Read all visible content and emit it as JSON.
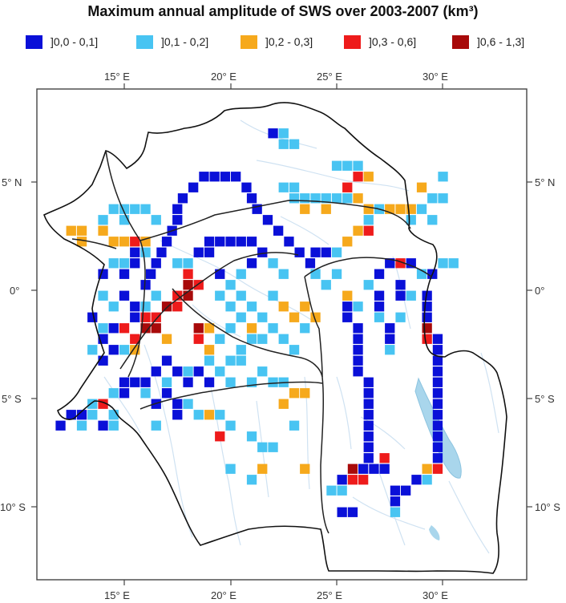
{
  "title": "Maximum annual amplitude of SWS over 2003-2007 (km³)",
  "legend": [
    {
      "label": "]0,0 - 0,1]",
      "color": "#0a10d8"
    },
    {
      "label": "]0,1 - 0,2]",
      "color": "#48c4f2"
    },
    {
      "label": "]0,2 - 0,3]",
      "color": "#f6a91c"
    },
    {
      "label": "]0,3 - 0,6]",
      "color": "#ee1b1b"
    },
    {
      "label": "]0,6 - 1,3]",
      "color": "#a80a0a"
    }
  ],
  "axes": {
    "lon_ticks": [
      "15° E",
      "20° E",
      "25° E",
      "30° E"
    ],
    "lat_ticks": [
      "5° N",
      "0°",
      "5° S",
      "10° S"
    ]
  },
  "chart_data": {
    "type": "heatmap",
    "title": "Maximum annual amplitude of SWS over 2003-2007 (km³)",
    "lon_range": [
      11.5,
      34.5
    ],
    "lat_range": [
      -13.8,
      9.5
    ],
    "cell_size_deg": 0.5,
    "classes": [
      "]0,0 - 0,1]",
      "]0,1 - 0,2]",
      "]0,2 - 0,3]",
      "]0,3 - 0,6]",
      "]0,6 - 1,3]"
    ],
    "cells": [
      [
        22.0,
        7.25,
        0
      ],
      [
        22.5,
        6.75,
        1
      ],
      [
        23.0,
        6.75,
        1
      ],
      [
        22.5,
        7.25,
        1
      ],
      [
        18.75,
        5.25,
        0
      ],
      [
        19.25,
        5.25,
        0
      ],
      [
        19.75,
        5.25,
        0
      ],
      [
        20.25,
        5.25,
        0
      ],
      [
        18.25,
        4.75,
        0
      ],
      [
        20.75,
        4.75,
        0
      ],
      [
        17.75,
        4.25,
        0
      ],
      [
        21.0,
        4.25,
        0
      ],
      [
        17.5,
        3.75,
        0
      ],
      [
        17.5,
        3.25,
        0
      ],
      [
        17.25,
        2.75,
        0
      ],
      [
        17.0,
        2.25,
        0
      ],
      [
        16.75,
        1.75,
        0
      ],
      [
        16.5,
        1.25,
        0
      ],
      [
        16.25,
        0.75,
        0
      ],
      [
        16.0,
        0.25,
        0
      ],
      [
        21.25,
        3.75,
        0
      ],
      [
        21.75,
        3.25,
        0
      ],
      [
        22.25,
        2.75,
        0
      ],
      [
        22.75,
        2.25,
        0
      ],
      [
        23.25,
        1.75,
        0
      ],
      [
        23.75,
        1.25,
        0
      ],
      [
        23.0,
        4.25,
        1
      ],
      [
        23.5,
        4.25,
        1
      ],
      [
        24.0,
        4.25,
        1
      ],
      [
        24.5,
        4.25,
        1
      ],
      [
        25.0,
        4.25,
        1
      ],
      [
        25.5,
        4.25,
        1
      ],
      [
        22.5,
        4.75,
        1
      ],
      [
        23.0,
        4.75,
        1
      ],
      [
        23.5,
        3.75,
        2
      ],
      [
        24.5,
        3.75,
        2
      ],
      [
        25.5,
        4.75,
        3
      ],
      [
        26.0,
        4.25,
        2
      ],
      [
        26.5,
        3.75,
        2
      ],
      [
        27.0,
        3.75,
        1
      ],
      [
        27.5,
        3.75,
        2
      ],
      [
        28.0,
        3.75,
        2
      ],
      [
        28.5,
        3.75,
        2
      ],
      [
        29.0,
        3.75,
        1
      ],
      [
        29.5,
        4.25,
        1
      ],
      [
        30.0,
        4.25,
        1
      ],
      [
        29.0,
        4.75,
        2
      ],
      [
        28.5,
        3.25,
        1
      ],
      [
        26.5,
        3.25,
        1
      ],
      [
        25.0,
        5.75,
        1
      ],
      [
        25.5,
        5.75,
        1
      ],
      [
        26.0,
        5.25,
        3
      ],
      [
        26.5,
        5.25,
        2
      ],
      [
        26.0,
        5.75,
        1
      ],
      [
        30.0,
        5.25,
        1
      ],
      [
        29.5,
        3.25,
        1
      ],
      [
        14.5,
        3.75,
        1
      ],
      [
        15.0,
        3.75,
        1
      ],
      [
        15.5,
        3.75,
        1
      ],
      [
        16.0,
        3.75,
        1
      ],
      [
        14.0,
        3.25,
        1
      ],
      [
        15.0,
        3.25,
        1
      ],
      [
        16.5,
        3.25,
        1
      ],
      [
        12.5,
        2.75,
        2
      ],
      [
        13.0,
        2.75,
        2
      ],
      [
        13.0,
        2.25,
        2
      ],
      [
        14.5,
        2.25,
        2
      ],
      [
        15.0,
        2.25,
        2
      ],
      [
        15.5,
        2.25,
        3
      ],
      [
        16.0,
        2.25,
        2
      ],
      [
        14.0,
        2.75,
        2
      ],
      [
        15.5,
        1.75,
        0
      ],
      [
        16.0,
        1.75,
        1
      ],
      [
        15.0,
        1.25,
        1
      ],
      [
        15.5,
        1.25,
        0
      ],
      [
        17.5,
        1.25,
        1
      ],
      [
        18.0,
        1.25,
        1
      ],
      [
        18.5,
        1.75,
        0
      ],
      [
        19.0,
        1.75,
        0
      ],
      [
        18.0,
        0.75,
        3
      ],
      [
        18.5,
        0.25,
        3
      ],
      [
        18.0,
        0.25,
        4
      ],
      [
        17.5,
        -0.25,
        3
      ],
      [
        17.0,
        -0.75,
        4
      ],
      [
        16.5,
        -1.25,
        3
      ],
      [
        16.0,
        -1.75,
        4
      ],
      [
        15.5,
        -2.25,
        3
      ],
      [
        17.5,
        -0.75,
        3
      ],
      [
        16.0,
        -1.25,
        3
      ],
      [
        18.0,
        -0.25,
        4
      ],
      [
        16.5,
        -1.75,
        4
      ],
      [
        15.0,
        -1.75,
        3
      ],
      [
        17.0,
        -2.25,
        2
      ],
      [
        15.5,
        -2.75,
        2
      ],
      [
        18.5,
        -1.75,
        4
      ],
      [
        18.5,
        -2.25,
        3
      ],
      [
        19.0,
        -2.75,
        2
      ],
      [
        19.0,
        -1.75,
        2
      ],
      [
        15.5,
        -0.75,
        0
      ],
      [
        15.0,
        -0.25,
        0
      ],
      [
        14.5,
        -0.75,
        1
      ],
      [
        14.0,
        -0.25,
        1
      ],
      [
        15.5,
        -1.25,
        0
      ],
      [
        14.5,
        -1.75,
        0
      ],
      [
        14.0,
        -2.25,
        0
      ],
      [
        14.5,
        -2.75,
        0
      ],
      [
        14.0,
        -3.25,
        0
      ],
      [
        13.5,
        -2.75,
        1
      ],
      [
        16.5,
        -0.25,
        1
      ],
      [
        16.0,
        -0.75,
        1
      ],
      [
        14.0,
        0.75,
        0
      ],
      [
        14.5,
        1.25,
        1
      ],
      [
        15.0,
        0.75,
        0
      ],
      [
        13.5,
        -1.25,
        0
      ],
      [
        14.0,
        -1.75,
        1
      ],
      [
        15.0,
        -2.75,
        1
      ],
      [
        19.5,
        0.75,
        0
      ],
      [
        20.0,
        0.25,
        1
      ],
      [
        20.5,
        0.75,
        1
      ],
      [
        21.0,
        1.25,
        0
      ],
      [
        21.5,
        1.75,
        0
      ],
      [
        22.0,
        1.25,
        1
      ],
      [
        22.5,
        0.75,
        1
      ],
      [
        20.5,
        -0.25,
        1
      ],
      [
        21.0,
        -0.75,
        1
      ],
      [
        21.5,
        -1.25,
        1
      ],
      [
        22.0,
        -1.75,
        1
      ],
      [
        22.5,
        -2.25,
        1
      ],
      [
        23.0,
        -2.75,
        1
      ],
      [
        19.5,
        -0.25,
        1
      ],
      [
        20.0,
        -0.75,
        1
      ],
      [
        20.5,
        -1.25,
        1
      ],
      [
        21.0,
        -1.75,
        2
      ],
      [
        21.5,
        -2.25,
        1
      ],
      [
        22.0,
        -0.25,
        1
      ],
      [
        22.5,
        -0.75,
        2
      ],
      [
        23.0,
        -1.25,
        2
      ],
      [
        23.5,
        -0.75,
        2
      ],
      [
        24.0,
        -1.25,
        2
      ],
      [
        23.5,
        -1.75,
        1
      ],
      [
        19.0,
        2.25,
        0
      ],
      [
        19.5,
        2.25,
        0
      ],
      [
        20.0,
        2.25,
        0
      ],
      [
        20.5,
        2.25,
        0
      ],
      [
        21.0,
        2.25,
        0
      ],
      [
        24.0,
        1.75,
        0
      ],
      [
        24.5,
        1.75,
        0
      ],
      [
        25.0,
        1.75,
        1
      ],
      [
        25.5,
        2.25,
        2
      ],
      [
        26.0,
        2.75,
        2
      ],
      [
        26.5,
        2.75,
        3
      ],
      [
        24.0,
        0.75,
        1
      ],
      [
        24.5,
        0.25,
        1
      ],
      [
        25.0,
        0.75,
        1
      ],
      [
        25.5,
        -0.25,
        2
      ],
      [
        26.0,
        -0.75,
        1
      ],
      [
        26.5,
        0.25,
        1
      ],
      [
        27.0,
        0.75,
        0
      ],
      [
        27.5,
        1.25,
        0
      ],
      [
        28.0,
        1.25,
        3
      ],
      [
        28.5,
        1.25,
        0
      ],
      [
        29.0,
        0.75,
        1
      ],
      [
        29.5,
        0.75,
        0
      ],
      [
        30.0,
        1.25,
        1
      ],
      [
        30.5,
        1.25,
        1
      ],
      [
        25.5,
        -0.75,
        0
      ],
      [
        25.5,
        -1.25,
        0
      ],
      [
        26.0,
        -1.75,
        0
      ],
      [
        26.0,
        -2.25,
        0
      ],
      [
        26.0,
        -2.75,
        0
      ],
      [
        26.0,
        -3.25,
        0
      ],
      [
        26.0,
        -3.75,
        0
      ],
      [
        26.5,
        -4.25,
        0
      ],
      [
        26.5,
        -4.75,
        0
      ],
      [
        26.5,
        -5.25,
        0
      ],
      [
        26.5,
        -5.75,
        0
      ],
      [
        26.5,
        -6.25,
        0
      ],
      [
        26.5,
        -6.75,
        0
      ],
      [
        26.5,
        -7.25,
        0
      ],
      [
        26.5,
        -7.75,
        0
      ],
      [
        27.0,
        -0.25,
        0
      ],
      [
        27.0,
        -0.75,
        0
      ],
      [
        27.0,
        -1.25,
        1
      ],
      [
        27.5,
        -1.75,
        0
      ],
      [
        27.5,
        -2.25,
        0
      ],
      [
        27.5,
        -2.75,
        1
      ],
      [
        28.0,
        0.25,
        0
      ],
      [
        28.0,
        -0.25,
        0
      ],
      [
        28.5,
        -0.25,
        1
      ],
      [
        28.0,
        -1.25,
        1
      ],
      [
        29.25,
        -0.25,
        0
      ],
      [
        29.25,
        -0.75,
        0
      ],
      [
        29.25,
        -1.25,
        0
      ],
      [
        29.25,
        -1.75,
        4
      ],
      [
        29.25,
        -2.25,
        3
      ],
      [
        29.75,
        -2.25,
        0
      ],
      [
        29.75,
        -2.75,
        0
      ],
      [
        29.75,
        -3.25,
        0
      ],
      [
        29.75,
        -3.75,
        0
      ],
      [
        29.75,
        -4.25,
        0
      ],
      [
        29.75,
        -4.75,
        0
      ],
      [
        29.75,
        -5.25,
        0
      ],
      [
        29.75,
        -5.75,
        0
      ],
      [
        29.75,
        -6.25,
        0
      ],
      [
        29.75,
        -6.75,
        0
      ],
      [
        29.75,
        -7.25,
        0
      ],
      [
        29.75,
        -7.75,
        0
      ],
      [
        29.75,
        -8.25,
        3
      ],
      [
        29.25,
        -8.25,
        2
      ],
      [
        29.25,
        -8.75,
        1
      ],
      [
        28.75,
        -8.75,
        0
      ],
      [
        28.25,
        -9.25,
        0
      ],
      [
        27.75,
        -9.25,
        0
      ],
      [
        27.75,
        -9.75,
        0
      ],
      [
        25.75,
        -8.25,
        4
      ],
      [
        25.75,
        -8.75,
        3
      ],
      [
        25.25,
        -8.75,
        0
      ],
      [
        24.75,
        -9.25,
        1
      ],
      [
        25.25,
        -9.25,
        1
      ],
      [
        26.25,
        -8.75,
        3
      ],
      [
        26.25,
        -8.25,
        0
      ],
      [
        26.75,
        -8.25,
        0
      ],
      [
        27.25,
        -7.75,
        3
      ],
      [
        27.25,
        -8.25,
        0
      ],
      [
        20.0,
        -1.75,
        1
      ],
      [
        19.5,
        -2.25,
        1
      ],
      [
        20.5,
        -2.75,
        1
      ],
      [
        21.0,
        -2.25,
        1
      ],
      [
        20.5,
        -3.25,
        1
      ],
      [
        21.5,
        -3.75,
        1
      ],
      [
        20.0,
        -3.25,
        1
      ],
      [
        19.5,
        -3.75,
        1
      ],
      [
        19.0,
        -3.25,
        1
      ],
      [
        18.5,
        -3.75,
        0
      ],
      [
        18.0,
        -4.25,
        0
      ],
      [
        17.5,
        -3.75,
        0
      ],
      [
        17.0,
        -3.25,
        0
      ],
      [
        16.5,
        -3.75,
        0
      ],
      [
        16.0,
        -4.25,
        0
      ],
      [
        15.5,
        -4.25,
        0
      ],
      [
        15.0,
        -4.75,
        0
      ],
      [
        14.5,
        -4.75,
        1
      ],
      [
        16.0,
        -4.75,
        1
      ],
      [
        15.0,
        -4.25,
        0
      ],
      [
        17.0,
        -4.25,
        1
      ],
      [
        18.0,
        -3.75,
        1
      ],
      [
        19.0,
        -4.25,
        0
      ],
      [
        20.0,
        -4.25,
        1
      ],
      [
        21.0,
        -4.25,
        1
      ],
      [
        22.0,
        -4.25,
        1
      ],
      [
        16.5,
        -5.25,
        0
      ],
      [
        17.0,
        -4.75,
        0
      ],
      [
        17.5,
        -5.25,
        0
      ],
      [
        18.0,
        -5.25,
        1
      ],
      [
        17.5,
        -5.75,
        0
      ],
      [
        22.5,
        -4.25,
        1
      ],
      [
        23.0,
        -4.75,
        2
      ],
      [
        23.5,
        -4.75,
        2
      ],
      [
        22.5,
        -5.25,
        2
      ],
      [
        18.5,
        -5.75,
        1
      ],
      [
        19.0,
        -5.75,
        2
      ],
      [
        19.5,
        -5.75,
        1
      ],
      [
        16.5,
        -6.25,
        1
      ],
      [
        19.5,
        -6.75,
        3
      ],
      [
        20.0,
        -6.25,
        1
      ],
      [
        21.0,
        -6.75,
        1
      ],
      [
        21.5,
        -7.25,
        1
      ],
      [
        22.0,
        -7.25,
        1
      ],
      [
        23.0,
        -6.25,
        1
      ],
      [
        21.5,
        -8.25,
        2
      ],
      [
        23.5,
        -8.25,
        2
      ],
      [
        20.0,
        -8.25,
        1
      ],
      [
        21.0,
        -8.75,
        1
      ],
      [
        14.5,
        -6.25,
        1
      ],
      [
        13.5,
        -5.25,
        1
      ],
      [
        13.0,
        -5.75,
        0
      ],
      [
        12.5,
        -5.75,
        0
      ],
      [
        12.0,
        -6.25,
        0
      ],
      [
        13.0,
        -6.25,
        1
      ],
      [
        13.5,
        -5.75,
        1
      ],
      [
        14.0,
        -5.25,
        3
      ],
      [
        14.5,
        -5.75,
        1
      ],
      [
        14.0,
        -6.25,
        0
      ],
      [
        25.25,
        -10.25,
        0
      ],
      [
        25.75,
        -10.25,
        0
      ],
      [
        27.75,
        -10.25,
        1
      ]
    ]
  }
}
